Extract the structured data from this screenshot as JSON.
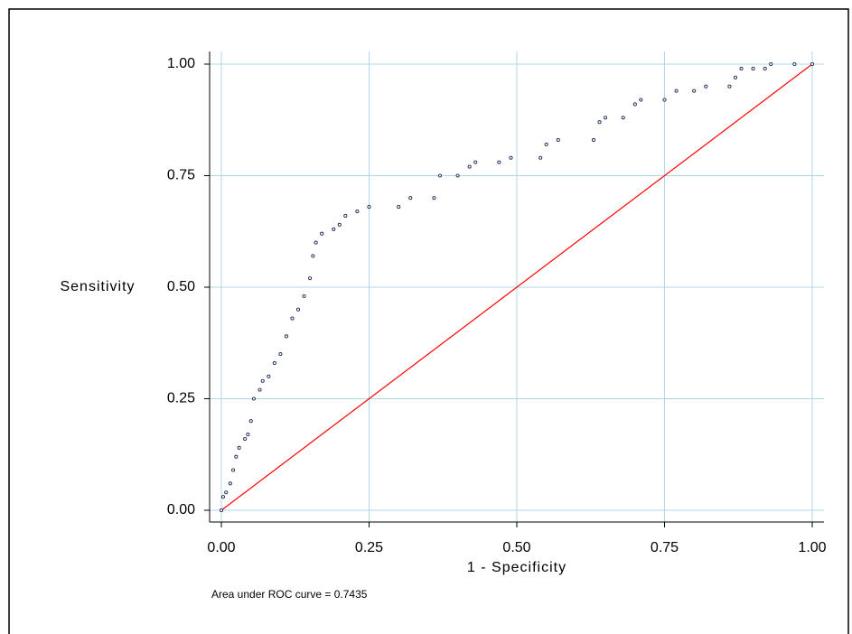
{
  "chart_data": {
    "type": "scatter",
    "xlabel": "1 - Specificity",
    "ylabel": "Sensitivity",
    "annotation": "Area under ROC curve = 0.7435",
    "color": "#1f2a55",
    "grid": true,
    "grid_color": "#add8e6",
    "xlim": [
      0,
      1
    ],
    "ylim": [
      0,
      1
    ],
    "xticks": [
      {
        "value": 0,
        "label": "0.00"
      },
      {
        "value": 0.25,
        "label": "0.25"
      },
      {
        "value": 0.5,
        "label": "0.50"
      },
      {
        "value": 0.75,
        "label": "0.75"
      },
      {
        "value": 1,
        "label": "1.00"
      }
    ],
    "yticks": [
      {
        "value": 0,
        "label": "0.00"
      },
      {
        "value": 0.25,
        "label": "0.25"
      },
      {
        "value": 0.5,
        "label": "0.50"
      },
      {
        "value": 0.75,
        "label": "0.75"
      },
      {
        "value": 1,
        "label": "1.00"
      }
    ],
    "x": [
      0,
      0.003,
      0.008,
      0.015,
      0.02,
      0.025,
      0.03,
      0.04,
      0.045,
      0.05,
      0.055,
      0.065,
      0.07,
      0.08,
      0.09,
      0.1,
      0.11,
      0.12,
      0.13,
      0.14,
      0.15,
      0.155,
      0.16,
      0.17,
      0.19,
      0.2,
      0.21,
      0.23,
      0.25,
      0.3,
      0.32,
      0.36,
      0.37,
      0.4,
      0.42,
      0.43,
      0.47,
      0.49,
      0.54,
      0.55,
      0.57,
      0.63,
      0.64,
      0.65,
      0.68,
      0.7,
      0.71,
      0.75,
      0.77,
      0.8,
      0.82,
      0.86,
      0.87,
      0.88,
      0.9,
      0.92,
      0.93,
      0.97,
      1.0
    ],
    "values": [
      0,
      0.03,
      0.04,
      0.06,
      0.09,
      0.12,
      0.14,
      0.16,
      0.17,
      0.2,
      0.25,
      0.27,
      0.29,
      0.3,
      0.33,
      0.35,
      0.39,
      0.43,
      0.45,
      0.48,
      0.52,
      0.57,
      0.6,
      0.62,
      0.63,
      0.64,
      0.66,
      0.67,
      0.68,
      0.68,
      0.7,
      0.7,
      0.75,
      0.75,
      0.77,
      0.78,
      0.78,
      0.79,
      0.79,
      0.82,
      0.83,
      0.83,
      0.87,
      0.88,
      0.88,
      0.91,
      0.92,
      0.92,
      0.94,
      0.94,
      0.95,
      0.95,
      0.97,
      0.99,
      0.99,
      0.99,
      1.0,
      1.0,
      1.0
    ],
    "reference_line": {
      "x": [
        0,
        1
      ],
      "values": [
        0,
        1
      ],
      "color": "#ff0000"
    }
  }
}
